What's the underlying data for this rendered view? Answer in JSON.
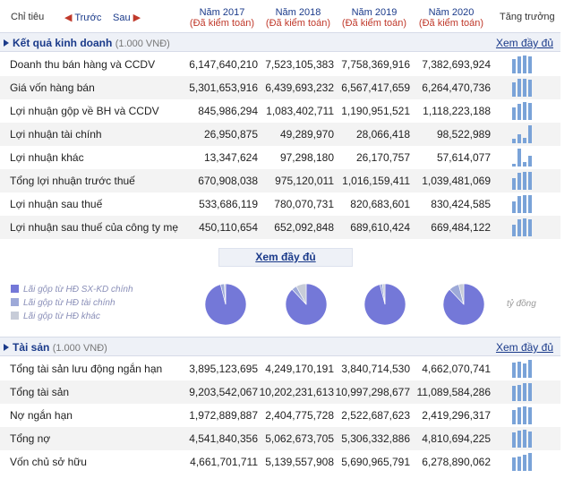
{
  "header": {
    "col_label": "Chỉ tiêu",
    "prev_label": "Trước",
    "next_label": "Sau",
    "trend_label": "Tăng trưởng",
    "years": [
      {
        "year": "Năm 2017",
        "audit": "(Đã kiểm toán)"
      },
      {
        "year": "Năm 2018",
        "audit": "(Đã kiểm toán)"
      },
      {
        "year": "Năm 2019",
        "audit": "(Đã kiểm toán)"
      },
      {
        "year": "Năm 2020",
        "audit": "(Đã kiểm toán)"
      }
    ]
  },
  "business": {
    "title": "Kết quả kinh doanh",
    "unit": "(1.000 VNĐ)",
    "more_label": "Xem đầy đủ",
    "rows": [
      {
        "name": "Doanh thu bán hàng và CCDV",
        "values": [
          "6,147,640,210",
          "7,523,105,383",
          "7,758,369,916",
          "7,382,693,924"
        ],
        "trend": [
          6147640210,
          7523105383,
          7758369916,
          7382693924
        ]
      },
      {
        "name": "Giá vốn hàng bán",
        "values": [
          "5,301,653,916",
          "6,439,693,232",
          "6,567,417,659",
          "6,264,470,736"
        ],
        "trend": [
          5301653916,
          6439693232,
          6567417659,
          6264470736
        ]
      },
      {
        "name": "Lợi nhuận gộp về BH và CCDV",
        "values": [
          "845,986,294",
          "1,083,402,711",
          "1,190,951,521",
          "1,118,223,188"
        ],
        "trend": [
          845986294,
          1083402711,
          1190951521,
          1118223188
        ]
      },
      {
        "name": "Lợi nhuận tài chính",
        "values": [
          "26,950,875",
          "49,289,970",
          "28,066,418",
          "98,522,989"
        ],
        "trend": [
          26950875,
          49289970,
          28066418,
          98522989
        ]
      },
      {
        "name": "Lợi nhuận khác",
        "values": [
          "13,347,624",
          "97,298,180",
          "26,170,757",
          "57,614,077"
        ],
        "trend": [
          13347624,
          97298180,
          26170757,
          57614077
        ]
      },
      {
        "name": "Tổng lợi nhuận trước thuế",
        "values": [
          "670,908,038",
          "975,120,011",
          "1,016,159,411",
          "1,039,481,069"
        ],
        "trend": [
          670908038,
          975120011,
          1016159411,
          1039481069
        ]
      },
      {
        "name": "Lợi nhuận sau thuế",
        "values": [
          "533,686,119",
          "780,070,731",
          "820,683,601",
          "830,424,585"
        ],
        "trend": [
          533686119,
          780070731,
          820683601,
          830424585
        ]
      },
      {
        "name": "Lợi nhuận sau thuế của công ty mẹ",
        "values": [
          "450,110,654",
          "652,092,848",
          "689,610,424",
          "669,484,122"
        ],
        "trend": [
          450110654,
          652092848,
          689610424,
          669484122
        ]
      }
    ],
    "show_more_label": "Xem đầy đủ"
  },
  "profit_structure": {
    "legend": [
      {
        "label": "Lãi gộp từ HĐ SX-KD chính",
        "color": "#7478d8"
      },
      {
        "label": "Lãi gộp từ HĐ tài chính",
        "color": "#9da9d8"
      },
      {
        "label": "Lãi gộp từ HĐ khác",
        "color": "#c7ccd8"
      }
    ],
    "pies": [
      {
        "year": "2017",
        "main": 0.96,
        "finance": 0.03,
        "other": 0.01
      },
      {
        "year": "2018",
        "main": 0.88,
        "finance": 0.04,
        "other": 0.08
      },
      {
        "year": "2019",
        "main": 0.96,
        "finance": 0.02,
        "other": 0.02
      },
      {
        "year": "2020",
        "main": 0.88,
        "finance": 0.08,
        "other": 0.04
      }
    ],
    "unit_label": "tỷ đồng"
  },
  "assets": {
    "title": "Tài sản",
    "unit": "(1.000 VNĐ)",
    "more_label": "Xem đầy đủ",
    "rows": [
      {
        "name": "Tổng tài sản lưu động ngắn hạn",
        "values": [
          "3,895,123,695",
          "4,249,170,191",
          "3,840,714,530",
          "4,662,070,741"
        ],
        "trend": [
          3895123695,
          4249170191,
          3840714530,
          4662070741
        ]
      },
      {
        "name": "Tổng tài sản",
        "values": [
          "9,203,542,067",
          "10,202,231,613",
          "10,997,298,677",
          "11,089,584,286"
        ],
        "trend": [
          9203542067,
          10202231613,
          10997298677,
          11089584286
        ]
      },
      {
        "name": "Nợ ngắn hạn",
        "values": [
          "1,972,889,887",
          "2,404,775,728",
          "2,522,687,623",
          "2,419,296,317"
        ],
        "trend": [
          1972889887,
          2404775728,
          2522687623,
          2419296317
        ]
      },
      {
        "name": "Tổng nợ",
        "values": [
          "4,541,840,356",
          "5,062,673,705",
          "5,306,332,886",
          "4,810,694,225"
        ],
        "trend": [
          4541840356,
          5062673705,
          5306332886,
          4810694225
        ]
      },
      {
        "name": "Vốn chủ sở hữu",
        "values": [
          "4,661,701,711",
          "5,139,557,908",
          "5,690,965,791",
          "6,278,890,062"
        ],
        "trend": [
          4661701711,
          5139557908,
          5690965791,
          6278890062
        ]
      }
    ]
  }
}
